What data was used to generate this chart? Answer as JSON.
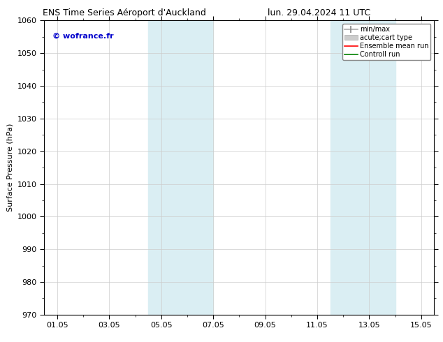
{
  "title_left": "ENS Time Series Aéroport d'Auckland",
  "title_right": "lun. 29.04.2024 11 UTC",
  "ylabel": "Surface Pressure (hPa)",
  "ylim": [
    970,
    1060
  ],
  "yticks": [
    970,
    980,
    990,
    1000,
    1010,
    1020,
    1030,
    1040,
    1050,
    1060
  ],
  "xlim": [
    -0.5,
    14.5
  ],
  "xtick_labels": [
    "01.05",
    "03.05",
    "05.05",
    "07.05",
    "09.05",
    "11.05",
    "13.05",
    "15.05"
  ],
  "xtick_positions": [
    0,
    2,
    4,
    6,
    8,
    10,
    12,
    14
  ],
  "shaded_bands": [
    {
      "start": 3.5,
      "end": 5.0,
      "color": "#daeef3"
    },
    {
      "start": 5.0,
      "end": 6.0,
      "color": "#daeef3"
    },
    {
      "start": 10.5,
      "end": 12.0,
      "color": "#daeef3"
    },
    {
      "start": 12.0,
      "end": 13.0,
      "color": "#daeef3"
    }
  ],
  "copyright_text": "© wofrance.fr",
  "copyright_color": "#0000cc",
  "background_color": "#ffffff",
  "plot_bg_color": "#ffffff",
  "title_fontsize": 9,
  "ylabel_fontsize": 8,
  "tick_fontsize": 8,
  "legend_fontsize": 7
}
